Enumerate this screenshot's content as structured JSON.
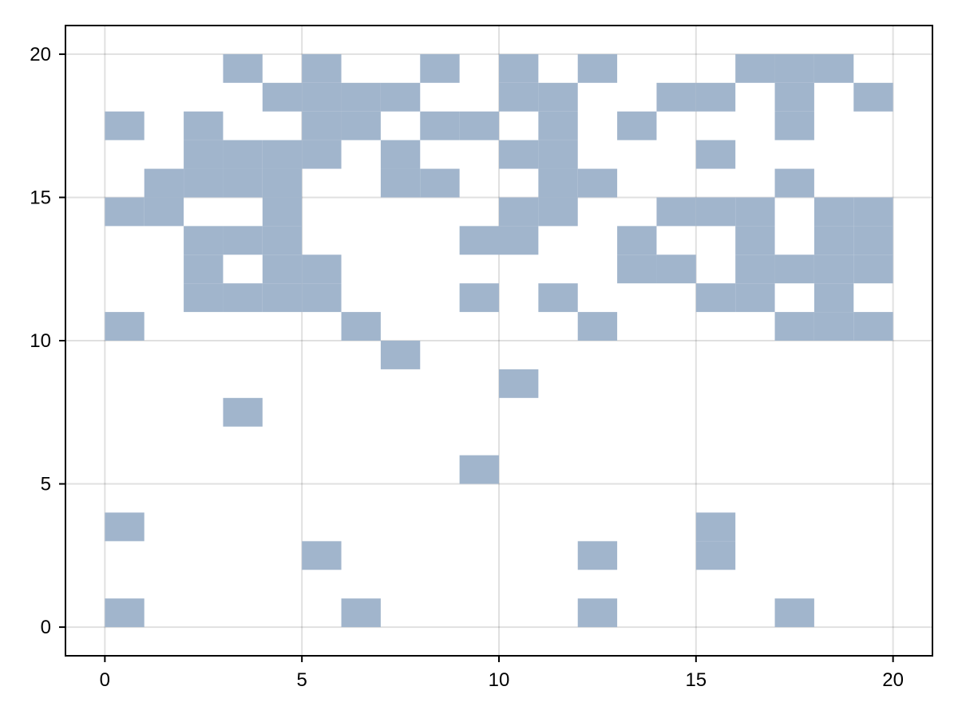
{
  "chart_data": {
    "type": "heatmap",
    "title": "",
    "xlabel": "",
    "ylabel": "",
    "xlim": [
      -1,
      21
    ],
    "ylim": [
      -1,
      21
    ],
    "grid": true,
    "legend": "none",
    "cell_color": "#a1b5cc",
    "cell_size": 1,
    "x_ticks": [
      0,
      5,
      10,
      15,
      20
    ],
    "y_ticks": [
      0,
      5,
      10,
      15,
      20
    ],
    "x_tick_labels": [
      "0",
      "5",
      "10",
      "15",
      "20"
    ],
    "y_tick_labels": [
      "0",
      "5",
      "10",
      "15",
      "20"
    ],
    "filled_cells": [
      [
        0,
        0
      ],
      [
        6,
        0
      ],
      [
        12,
        0
      ],
      [
        17,
        0
      ],
      [
        5,
        2
      ],
      [
        12,
        2
      ],
      [
        15,
        2
      ],
      [
        0,
        3
      ],
      [
        15,
        3
      ],
      [
        9,
        5
      ],
      [
        3,
        7
      ],
      [
        10,
        8
      ],
      [
        7,
        9
      ],
      [
        0,
        10
      ],
      [
        6,
        10
      ],
      [
        12,
        10
      ],
      [
        17,
        10
      ],
      [
        18,
        10
      ],
      [
        19,
        10
      ],
      [
        2,
        11
      ],
      [
        3,
        11
      ],
      [
        4,
        11
      ],
      [
        5,
        11
      ],
      [
        9,
        11
      ],
      [
        11,
        11
      ],
      [
        15,
        11
      ],
      [
        16,
        11
      ],
      [
        18,
        11
      ],
      [
        2,
        12
      ],
      [
        4,
        12
      ],
      [
        5,
        12
      ],
      [
        13,
        12
      ],
      [
        14,
        12
      ],
      [
        16,
        12
      ],
      [
        17,
        12
      ],
      [
        18,
        12
      ],
      [
        19,
        12
      ],
      [
        2,
        13
      ],
      [
        3,
        13
      ],
      [
        4,
        13
      ],
      [
        9,
        13
      ],
      [
        10,
        13
      ],
      [
        13,
        13
      ],
      [
        16,
        13
      ],
      [
        18,
        13
      ],
      [
        19,
        13
      ],
      [
        0,
        14
      ],
      [
        1,
        14
      ],
      [
        4,
        14
      ],
      [
        10,
        14
      ],
      [
        11,
        14
      ],
      [
        14,
        14
      ],
      [
        15,
        14
      ],
      [
        16,
        14
      ],
      [
        18,
        14
      ],
      [
        19,
        14
      ],
      [
        1,
        15
      ],
      [
        2,
        15
      ],
      [
        3,
        15
      ],
      [
        4,
        15
      ],
      [
        7,
        15
      ],
      [
        8,
        15
      ],
      [
        11,
        15
      ],
      [
        12,
        15
      ],
      [
        17,
        15
      ],
      [
        2,
        16
      ],
      [
        3,
        16
      ],
      [
        4,
        16
      ],
      [
        5,
        16
      ],
      [
        7,
        16
      ],
      [
        10,
        16
      ],
      [
        11,
        16
      ],
      [
        15,
        16
      ],
      [
        0,
        17
      ],
      [
        2,
        17
      ],
      [
        5,
        17
      ],
      [
        6,
        17
      ],
      [
        8,
        17
      ],
      [
        9,
        17
      ],
      [
        11,
        17
      ],
      [
        13,
        17
      ],
      [
        17,
        17
      ],
      [
        4,
        18
      ],
      [
        5,
        18
      ],
      [
        6,
        18
      ],
      [
        7,
        18
      ],
      [
        10,
        18
      ],
      [
        11,
        18
      ],
      [
        14,
        18
      ],
      [
        15,
        18
      ],
      [
        17,
        18
      ],
      [
        19,
        18
      ],
      [
        3,
        19
      ],
      [
        5,
        19
      ],
      [
        8,
        19
      ],
      [
        10,
        19
      ],
      [
        12,
        19
      ],
      [
        16,
        19
      ],
      [
        17,
        19
      ],
      [
        18,
        19
      ]
    ]
  }
}
